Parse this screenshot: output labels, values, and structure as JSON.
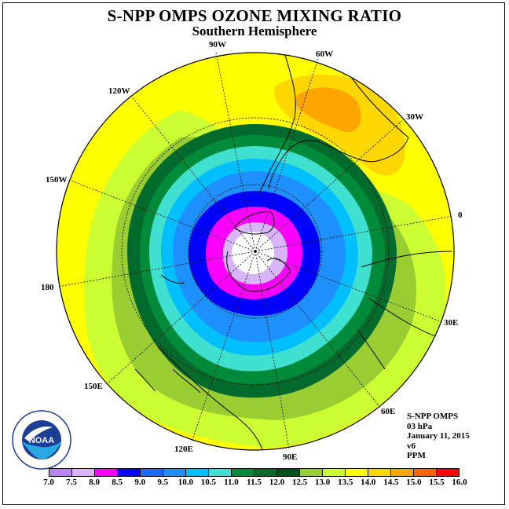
{
  "title": "S-NPP OMPS OZONE MIXING RATIO",
  "subtitle": "Southern Hemisphere",
  "longitude_labels": [
    "90W",
    "60W",
    "30W",
    "0",
    "30E",
    "60E",
    "90E",
    "120E",
    "150E",
    "180",
    "150W",
    "120W"
  ],
  "info": {
    "instrument": "S-NPP OMPS",
    "level": "03 hPa",
    "date": "January 11, 2015",
    "version": "v6",
    "units": "PPM"
  },
  "logo_text": "NOAA",
  "colorbar": {
    "ticks": [
      "7.0",
      "7.5",
      "8.0",
      "8.5",
      "9.0",
      "9.5",
      "10.0",
      "10.5",
      "11.0",
      "11.5",
      "12.0",
      "12.5",
      "13.0",
      "13.5",
      "14.0",
      "14.5",
      "15.0",
      "15.5",
      "16.0"
    ],
    "colors": [
      "#b784f7",
      "#d8b4f8",
      "#ff00ff",
      "#0000ff",
      "#1a6cff",
      "#1e90ff",
      "#00bfff",
      "#40e0d0",
      "#008b3a",
      "#006b2d",
      "#00501e",
      "#9acd32",
      "#ccff33",
      "#ffff00",
      "#ffd700",
      "#ffa500",
      "#ff6600",
      "#ff0000",
      "#8b4513"
    ]
  },
  "map": {
    "projection": "polar stereographic, south pole",
    "level_colors": {
      "c8_0": "#ffffff",
      "c8_5": "#d8b4f8",
      "c9_0": "#ff00ff",
      "c9_5": "#0000ff",
      "c10_0": "#1a6cff",
      "c10_5": "#1e90ff",
      "c11_0": "#00bfff",
      "c11_5": "#40e0d0",
      "c12_0": "#00a040",
      "c12_5": "#008b3a",
      "c13_0": "#006b2d",
      "c13_5": "#9acd32",
      "c14_0": "#ccff33",
      "c14_5": "#ffff00",
      "c15_0": "#ffd700",
      "c15_5": "#ffa500"
    }
  }
}
